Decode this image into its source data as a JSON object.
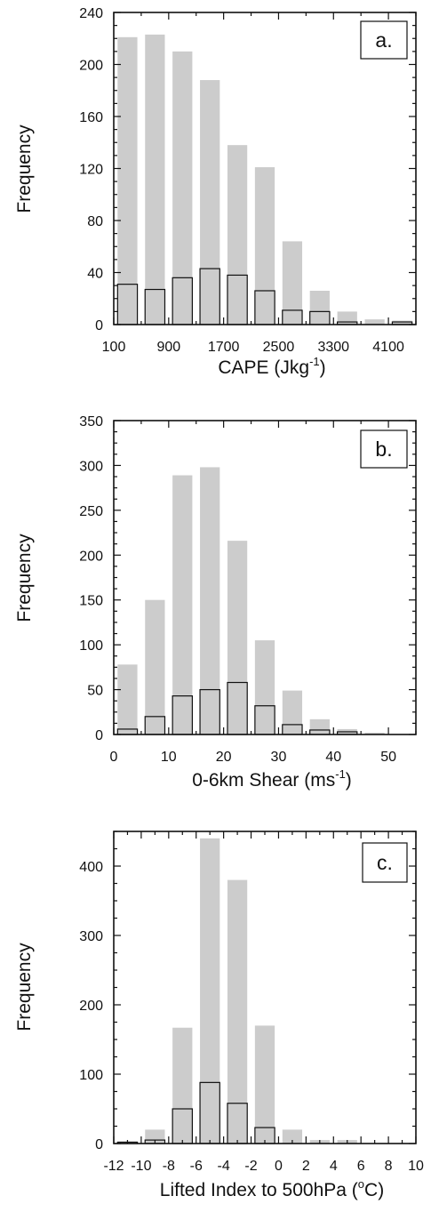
{
  "chart_data": [
    {
      "type": "bar",
      "panel_label": "a.",
      "title": "",
      "xlabel": "CAPE (Jkg",
      "xlabel_sup": "-1",
      "xlabel_suffix": ")",
      "ylabel": "Frequency",
      "xlim": [
        100,
        4500
      ],
      "ylim": [
        0,
        240
      ],
      "yticks": [
        0,
        40,
        80,
        120,
        160,
        200,
        240
      ],
      "xticks": [
        100,
        900,
        1700,
        2500,
        3300,
        4100
      ],
      "bin_width": 400,
      "bin_starts": [
        100,
        500,
        900,
        1300,
        1700,
        2100,
        2500,
        2900,
        3300,
        3700,
        4100
      ],
      "series": [
        {
          "fill": "#cccccc",
          "values": [
            221,
            223,
            210,
            188,
            138,
            121,
            64,
            26,
            10,
            4,
            3
          ]
        },
        {
          "fill": "none",
          "values": [
            31,
            27,
            36,
            43,
            38,
            26,
            11,
            10,
            2,
            0,
            2
          ]
        }
      ],
      "grid": false,
      "legend": "none"
    },
    {
      "type": "bar",
      "panel_label": "b.",
      "title": "",
      "xlabel": "0-6km Shear (ms",
      "xlabel_sup": "-1",
      "xlabel_suffix": ")",
      "ylabel": "Frequency",
      "xlim": [
        0,
        55
      ],
      "ylim": [
        0,
        350
      ],
      "yticks": [
        0,
        50,
        100,
        150,
        200,
        250,
        300,
        350
      ],
      "xticks": [
        0,
        10,
        20,
        30,
        40,
        50
      ],
      "bin_width": 5,
      "bin_starts": [
        0,
        5,
        10,
        15,
        20,
        25,
        30,
        35,
        40,
        45,
        50
      ],
      "series": [
        {
          "fill": "#cccccc",
          "values": [
            78,
            150,
            289,
            298,
            216,
            105,
            49,
            17,
            6,
            2,
            0
          ]
        },
        {
          "fill": "none",
          "values": [
            6,
            20,
            43,
            50,
            58,
            32,
            11,
            5,
            3,
            0,
            0
          ]
        }
      ],
      "grid": false,
      "legend": "none"
    },
    {
      "type": "bar",
      "panel_label": "c.",
      "title": "",
      "xlabel": "Lifted Index to 500hPa (",
      "xlabel_sup": "o",
      "xlabel_suffix": "C)",
      "ylabel": "Frequency",
      "xlim": [
        -12,
        10
      ],
      "ylim": [
        0,
        450
      ],
      "yticks": [
        0,
        100,
        200,
        300,
        400
      ],
      "xticks": [
        -12,
        -10,
        -8,
        -6,
        -4,
        -2,
        0,
        2,
        4,
        6,
        8,
        10
      ],
      "bin_width": 2,
      "bin_starts": [
        -12,
        -10,
        -8,
        -6,
        -4,
        -2,
        0,
        2,
        4,
        6,
        8
      ],
      "series": [
        {
          "fill": "#cccccc",
          "values": [
            2,
            20,
            167,
            440,
            380,
            170,
            20,
            5,
            5,
            0,
            0
          ]
        },
        {
          "fill": "none",
          "values": [
            2,
            5,
            50,
            88,
            58,
            23,
            0,
            0,
            0,
            0,
            0
          ]
        }
      ],
      "grid": false,
      "legend": "none"
    }
  ]
}
